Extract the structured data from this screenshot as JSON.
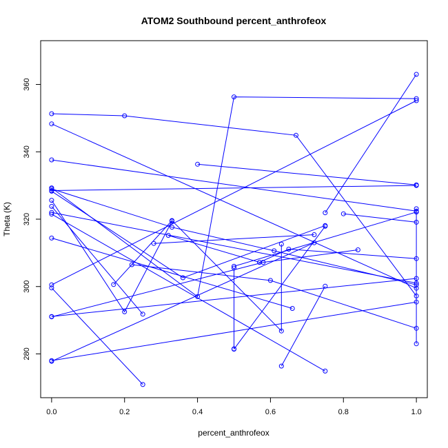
{
  "chart_data": {
    "type": "line",
    "title": "ATOM2 Southbound percent_anthrofeox",
    "xlabel": "percent_anthrofeox",
    "ylabel": "Theta (K)",
    "xlim": [
      -0.03,
      1.03
    ],
    "ylim": [
      267,
      373
    ],
    "xticks": [
      0.0,
      0.2,
      0.4,
      0.6,
      0.8,
      1.0
    ],
    "xtick_labels": [
      "0.0",
      "0.2",
      "0.4",
      "0.6",
      "0.8",
      "1.0"
    ],
    "yticks": [
      280,
      300,
      320,
      340,
      360
    ],
    "ytick_labels": [
      "280",
      "300",
      "320",
      "340",
      "360"
    ],
    "grid": false,
    "series_color": "#0000ff",
    "series": [
      {
        "points": [
          [
            0.0,
            351.3
          ],
          [
            0.2,
            350.7
          ],
          [
            0.67,
            344.9
          ],
          [
            1.0,
            297.2
          ]
        ]
      },
      {
        "points": [
          [
            0.0,
            348.3
          ],
          [
            1.0,
            299.5
          ]
        ]
      },
      {
        "points": [
          [
            0.0,
            337.6
          ],
          [
            1.0,
            322.4
          ]
        ]
      },
      {
        "points": [
          [
            0.0,
            329.3
          ],
          [
            0.4,
            297.0
          ],
          [
            0.5,
            356.3
          ],
          [
            1.0,
            355.8
          ]
        ]
      },
      {
        "points": [
          [
            0.0,
            328.3
          ],
          [
            0.36,
            302.6
          ],
          [
            0.75,
            318.1
          ]
        ]
      },
      {
        "points": [
          [
            0.0,
            325.6
          ],
          [
            0.2,
            292.5
          ],
          [
            0.33,
            319.4
          ]
        ]
      },
      {
        "points": [
          [
            0.0,
            323.8
          ],
          [
            0.25,
            291.8
          ]
        ]
      },
      {
        "points": [
          [
            0.0,
            321.5
          ],
          [
            0.75,
            274.9
          ]
        ]
      },
      {
        "points": [
          [
            0.0,
            314.4
          ],
          [
            0.66,
            293.5
          ]
        ]
      },
      {
        "points": [
          [
            0.0,
            300.5
          ],
          [
            1.0,
            355.2
          ]
        ]
      },
      {
        "points": [
          [
            0.0,
            299.6
          ],
          [
            0.25,
            270.9
          ]
        ]
      },
      {
        "points": [
          [
            0.0,
            291.0
          ],
          [
            0.58,
            307.2
          ],
          [
            0.84,
            310.9
          ]
        ]
      },
      {
        "points": [
          [
            0.0,
            277.8
          ],
          [
            0.72,
            313.0
          ]
        ]
      },
      {
        "points": [
          [
            0.4,
            336.3
          ],
          [
            1.0,
            330.2
          ]
        ]
      },
      {
        "points": [
          [
            0.17,
            300.6
          ],
          [
            0.33,
            319.6
          ],
          [
            0.63,
            286.8
          ],
          [
            0.63,
            312.6
          ]
        ]
      },
      {
        "points": [
          [
            0.5,
            306.0
          ],
          [
            1.0,
            322.1
          ]
        ]
      },
      {
        "points": [
          [
            0.5,
            281.4
          ],
          [
            0.75,
            317.9
          ]
        ]
      },
      {
        "points": [
          [
            0.63,
            276.4
          ],
          [
            0.75,
            300.1
          ]
        ]
      },
      {
        "points": [
          [
            0.75,
            321.9
          ],
          [
            1.0,
            363.0
          ]
        ]
      },
      {
        "points": [
          [
            0.8,
            321.6
          ],
          [
            1.0,
            319.1
          ]
        ]
      },
      {
        "points": [
          [
            0.22,
            306.5
          ],
          [
            0.6,
            301.8
          ],
          [
            1.0,
            287.6
          ]
        ]
      },
      {
        "points": [
          [
            1.0,
            323.1
          ],
          [
            1.0,
            283.0
          ]
        ]
      },
      {
        "points": [
          [
            0.0,
            329.0
          ],
          [
            0.33,
            317.6
          ],
          [
            0.61,
            310.6
          ],
          [
            1.0,
            300.5
          ]
        ]
      },
      {
        "points": [
          [
            0.28,
            312.8
          ],
          [
            0.72,
            315.4
          ]
        ]
      },
      {
        "points": [
          [
            0.32,
            315.2
          ],
          [
            0.57,
            307.2
          ],
          [
            0.65,
            311.1
          ],
          [
            1.0,
            308.3
          ]
        ]
      },
      {
        "points": [
          [
            0.0,
            322.0
          ],
          [
            1.0,
            301.0
          ]
        ]
      },
      {
        "points": [
          [
            0.0,
            328.5
          ],
          [
            1.0,
            330.0
          ]
        ]
      },
      {
        "points": [
          [
            0.5,
            305.5
          ],
          [
            0.5,
            281.5
          ]
        ]
      },
      {
        "points": [
          [
            0.0,
            291.1
          ],
          [
            1.0,
            302.4
          ]
        ]
      },
      {
        "points": [
          [
            0.0,
            278.0
          ],
          [
            1.0,
            295.4
          ]
        ]
      }
    ]
  }
}
